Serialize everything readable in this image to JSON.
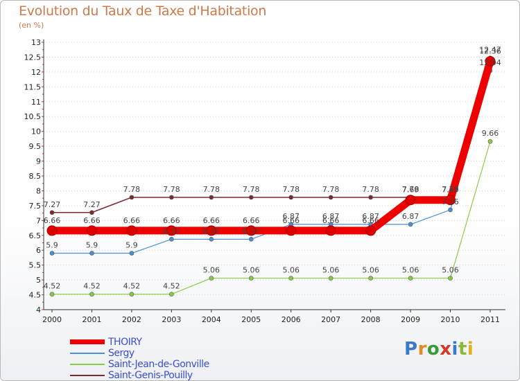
{
  "chart_data": {
    "type": "line",
    "title": "Evolution du Taux de Taxe d'Habitation",
    "unit_label": "(en %)",
    "xlabel": "",
    "ylabel": "",
    "categories": [
      "2000",
      "2001",
      "2002",
      "2003",
      "2004",
      "2005",
      "2006",
      "2007",
      "2008",
      "2009",
      "2010",
      "2011"
    ],
    "ylim": [
      4,
      13
    ],
    "yticks": [
      "4",
      "4.5",
      "5",
      "5.5",
      "6",
      "6.5",
      "7",
      "7.5",
      "8",
      "8.5",
      "9",
      "9.5",
      "10",
      "10.5",
      "11",
      "11.5",
      "12",
      "12.5",
      "13"
    ],
    "series": [
      {
        "name": "THOIRY",
        "color": "#ee0000",
        "values": [
          6.66,
          6.66,
          6.66,
          6.66,
          6.66,
          6.66,
          6.66,
          6.66,
          6.66,
          7.69,
          7.69,
          12.36
        ],
        "labels": [
          "6.66",
          "6.66",
          "6.66",
          "6.66",
          "6.66",
          "6.66",
          "6.66",
          "6.66",
          "6.66",
          "7.69",
          "7.69",
          "12.36"
        ]
      },
      {
        "name": "Sergy",
        "color": "#4a90d0",
        "values": [
          5.9,
          5.9,
          5.9,
          6.37,
          6.37,
          6.37,
          6.87,
          6.87,
          6.87,
          6.87,
          7.36,
          12.04
        ],
        "labels": [
          "5.9",
          "5.9",
          "5.9",
          "6.37",
          "6.37",
          "6.37",
          "6.87",
          "6.87",
          "6.87",
          "6.87",
          "7.36",
          "12.04"
        ]
      },
      {
        "name": "Saint-Jean-de-Gonville",
        "color": "#88cc44",
        "values": [
          4.52,
          4.52,
          4.52,
          4.52,
          5.06,
          5.06,
          5.06,
          5.06,
          5.06,
          5.06,
          5.06,
          9.66
        ],
        "labels": [
          "4.52",
          "4.52",
          "4.52",
          "4.52",
          "5.06",
          "5.06",
          "5.06",
          "5.06",
          "5.06",
          "5.06",
          "5.06",
          "9.66"
        ]
      },
      {
        "name": "Saint-Genis-Pouilly",
        "color": "#7a2b2b",
        "values": [
          7.27,
          7.27,
          7.78,
          7.78,
          7.78,
          7.78,
          7.78,
          7.78,
          7.78,
          7.78,
          7.78,
          12.47
        ],
        "labels": [
          "7.27",
          "7.27",
          "7.78",
          "7.78",
          "7.78",
          "7.78",
          "7.78",
          "7.78",
          "7.78",
          "7.78",
          "7.78",
          "12.47"
        ]
      }
    ],
    "legend_position": "bottom-left"
  },
  "logo_text": "Proxiti"
}
